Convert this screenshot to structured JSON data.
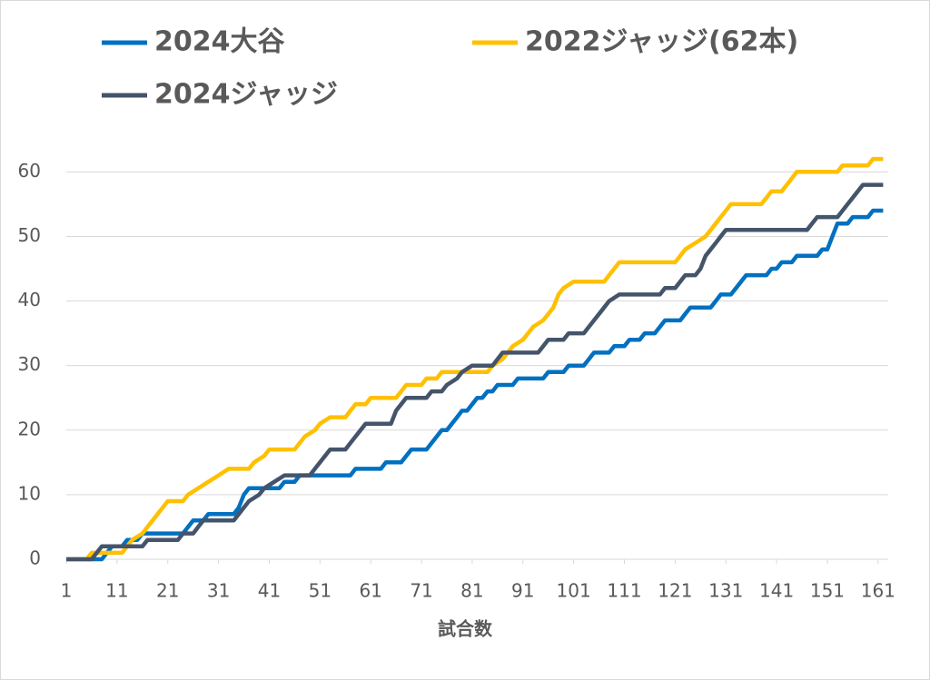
{
  "chart_data": {
    "type": "line",
    "xlabel": "試合数",
    "xlim": [
      1,
      163
    ],
    "xticks": [
      1,
      11,
      21,
      31,
      41,
      51,
      61,
      71,
      81,
      91,
      101,
      111,
      121,
      131,
      141,
      151,
      161
    ],
    "ylim": [
      0,
      63
    ],
    "yticks": [
      0,
      10,
      20,
      30,
      40,
      50,
      60
    ],
    "grid": true,
    "legend": "top",
    "series": [
      {
        "name": "2024大谷",
        "color": "#0070c0",
        "x": [
          1,
          8,
          9,
          10,
          12,
          13,
          15,
          16,
          24,
          25,
          26,
          28,
          29,
          34,
          35,
          36,
          37,
          43,
          44,
          46,
          47,
          57,
          58,
          63,
          64,
          67,
          68,
          69,
          72,
          73,
          74,
          75,
          76,
          77,
          78,
          79,
          80,
          81,
          82,
          83,
          84,
          85,
          86,
          89,
          90,
          95,
          96,
          99,
          100,
          103,
          104,
          105,
          108,
          109,
          111,
          112,
          114,
          115,
          117,
          118,
          119,
          122,
          123,
          124,
          128,
          129,
          130,
          132,
          133,
          134,
          135,
          139,
          140,
          141,
          142,
          144,
          145,
          149,
          150,
          151,
          152,
          153,
          155,
          156,
          159,
          160,
          162
        ],
        "values": [
          0,
          0,
          1,
          2,
          2,
          3,
          3,
          4,
          4,
          5,
          6,
          6,
          7,
          7,
          8,
          10,
          11,
          11,
          12,
          12,
          13,
          13,
          14,
          14,
          15,
          15,
          16,
          17,
          17,
          18,
          19,
          20,
          20,
          21,
          22,
          23,
          23,
          24,
          25,
          25,
          26,
          26,
          27,
          27,
          28,
          28,
          29,
          29,
          30,
          30,
          31,
          32,
          32,
          33,
          33,
          34,
          34,
          35,
          35,
          36,
          37,
          37,
          38,
          39,
          39,
          40,
          41,
          41,
          42,
          43,
          44,
          44,
          45,
          45,
          46,
          46,
          47,
          47,
          48,
          48,
          50,
          52,
          52,
          53,
          53,
          54,
          54
        ]
      },
      {
        "name": "2022ジャッジ(62本)",
        "color": "#ffc000",
        "x": [
          1,
          5,
          6,
          12,
          13,
          14,
          16,
          17,
          18,
          19,
          20,
          21,
          24,
          25,
          27,
          29,
          31,
          33,
          37,
          38,
          40,
          41,
          46,
          47,
          48,
          50,
          51,
          53,
          56,
          57,
          58,
          60,
          61,
          66,
          67,
          68,
          71,
          72,
          74,
          75,
          84,
          85,
          87,
          88,
          89,
          91,
          92,
          93,
          95,
          96,
          97,
          98,
          99,
          101,
          107,
          108,
          109,
          110,
          121,
          122,
          123,
          125,
          127,
          128,
          129,
          130,
          131,
          132,
          138,
          139,
          140,
          142,
          143,
          144,
          145,
          153,
          154,
          159,
          160,
          162
        ],
        "values": [
          0,
          0,
          1,
          1,
          2,
          3,
          4,
          5,
          6,
          7,
          8,
          9,
          9,
          10,
          11,
          12,
          13,
          14,
          14,
          15,
          16,
          17,
          17,
          18,
          19,
          20,
          21,
          22,
          22,
          23,
          24,
          24,
          25,
          25,
          26,
          27,
          27,
          28,
          28,
          29,
          29,
          30,
          31,
          32,
          33,
          34,
          35,
          36,
          37,
          38,
          39,
          41,
          42,
          43,
          43,
          44,
          45,
          46,
          46,
          47,
          48,
          49,
          50,
          51,
          52,
          53,
          54,
          55,
          55,
          56,
          57,
          57,
          58,
          59,
          60,
          60,
          61,
          61,
          62,
          62
        ]
      },
      {
        "name": "2024ジャッジ",
        "color": "#44546a",
        "x": [
          1,
          6,
          7,
          8,
          16,
          17,
          23,
          24,
          26,
          27,
          28,
          34,
          35,
          36,
          37,
          39,
          40,
          42,
          44,
          49,
          50,
          51,
          52,
          53,
          56,
          57,
          58,
          59,
          60,
          65,
          66,
          67,
          68,
          72,
          73,
          75,
          76,
          78,
          79,
          81,
          85,
          86,
          87,
          94,
          95,
          96,
          99,
          100,
          103,
          104,
          105,
          106,
          107,
          108,
          110,
          118,
          119,
          121,
          122,
          123,
          125,
          126,
          127,
          128,
          129,
          130,
          131,
          147,
          148,
          149,
          153,
          154,
          155,
          156,
          157,
          158,
          162
        ],
        "values": [
          0,
          0,
          1,
          2,
          2,
          3,
          3,
          4,
          4,
          5,
          6,
          6,
          7,
          8,
          9,
          10,
          11,
          12,
          13,
          13,
          14,
          15,
          16,
          17,
          17,
          18,
          19,
          20,
          21,
          21,
          23,
          24,
          25,
          25,
          26,
          26,
          27,
          28,
          29,
          30,
          30,
          31,
          32,
          32,
          33,
          34,
          34,
          35,
          35,
          36,
          37,
          38,
          39,
          40,
          41,
          41,
          42,
          42,
          43,
          44,
          44,
          45,
          47,
          48,
          49,
          50,
          51,
          51,
          52,
          53,
          53,
          54,
          55,
          56,
          57,
          58,
          58
        ]
      }
    ]
  }
}
